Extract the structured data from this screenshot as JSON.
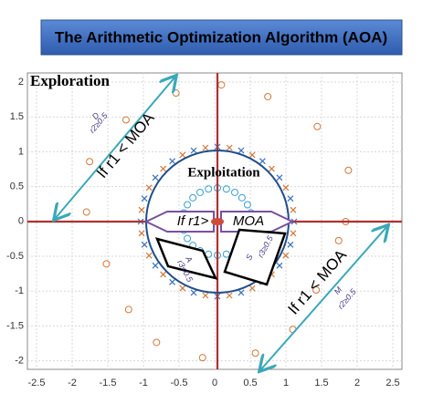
{
  "title": "The Arithmetic Optimization Algorithm (AOA)",
  "labels": {
    "exploration": "Exploration",
    "exploitation": "Exploitation",
    "upper_arrow": "If r1 < MOA",
    "lower_arrow": "If r1 < MOA",
    "left_arrow": "If r1>",
    "right_arrow": "MOA",
    "d": "D",
    "d_cond": "r2≥0.5",
    "m": "M",
    "m_cond": "r2≥0.5",
    "a": "A",
    "a_cond": "r3<0.5",
    "s": "S",
    "s_cond": "r3≥0.5"
  },
  "axes": {
    "xticks": [
      "-2.5",
      "-2",
      "-1.5",
      "-1",
      "-0.5",
      "0",
      "0.5",
      "1",
      "1.5",
      "2",
      "2.5"
    ],
    "yticks": [
      "2",
      "1.5",
      "1",
      "0.5",
      "0",
      "-0.5",
      "-1",
      "-1.5",
      "-2"
    ]
  }
}
